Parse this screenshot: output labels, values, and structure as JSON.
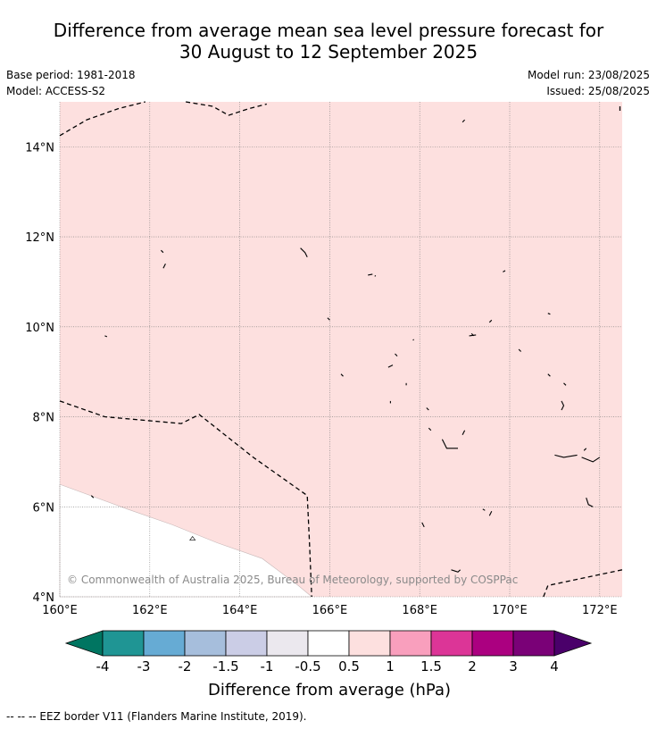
{
  "title": {
    "line1": "Difference from average mean sea level pressure forecast for",
    "line2": "30 August to 12 September 2025"
  },
  "meta": {
    "base_period": "Base period: 1981-2018",
    "model": "Model: ACCESS-S2",
    "model_run": "Model run: 23/08/2025",
    "issued": "Issued: 25/08/2025"
  },
  "map": {
    "lon_range": [
      160,
      172.5
    ],
    "lat_range": [
      4,
      15
    ],
    "lon_ticks": [
      {
        "value": 160,
        "label": "160°E"
      },
      {
        "value": 162,
        "label": "162°E"
      },
      {
        "value": 164,
        "label": "164°E"
      },
      {
        "value": 166,
        "label": "166°E"
      },
      {
        "value": 168,
        "label": "168°E"
      },
      {
        "value": 170,
        "label": "170°E"
      },
      {
        "value": 172,
        "label": "172°E"
      }
    ],
    "lat_ticks": [
      {
        "value": 4,
        "label": "4°N"
      },
      {
        "value": 6,
        "label": "6°N"
      },
      {
        "value": 8,
        "label": "8°N"
      },
      {
        "value": 10,
        "label": "10°N"
      },
      {
        "value": 12,
        "label": "12°N"
      },
      {
        "value": 14,
        "label": "14°N"
      }
    ],
    "field_category": "0.5 to 1",
    "field_color": "#fde0df",
    "neutral_category": "-0.5 to 0.5",
    "neutral_color": "#ffffff",
    "copyright": "© Commonwealth of Australia 2025, Bureau of Meteorology, supported by COSPPac",
    "eez_lines": [
      [
        [
          160,
          14.25
        ],
        [
          160.6,
          14.6
        ],
        [
          161.3,
          14.85
        ],
        [
          161.9,
          15.0
        ]
      ],
      [
        [
          162.8,
          15.0
        ],
        [
          163.4,
          14.9
        ],
        [
          163.75,
          14.7
        ],
        [
          164.2,
          14.85
        ],
        [
          164.6,
          14.95
        ]
      ],
      [
        [
          160,
          8.35
        ],
        [
          161.0,
          8.0
        ],
        [
          162.7,
          7.85
        ],
        [
          163.1,
          8.05
        ],
        [
          164.3,
          7.1
        ],
        [
          165.5,
          6.25
        ],
        [
          165.55,
          5.2
        ],
        [
          165.6,
          4.0
        ]
      ],
      [
        [
          170.75,
          4.0
        ],
        [
          170.85,
          4.25
        ],
        [
          172.5,
          4.6
        ]
      ],
      [
        [
          172.45,
          14.9
        ],
        [
          172.45,
          14.75
        ]
      ]
    ],
    "islands": [
      [
        [
          162.25,
          11.7
        ],
        [
          162.3,
          11.65
        ]
      ],
      [
        [
          162.35,
          11.4
        ],
        [
          162.3,
          11.3
        ]
      ],
      [
        [
          165.35,
          11.75
        ],
        [
          165.45,
          11.65
        ],
        [
          165.5,
          11.55
        ]
      ],
      [
        [
          166.85,
          11.15
        ],
        [
          166.95,
          11.17
        ]
      ],
      [
        [
          169.85,
          11.22
        ],
        [
          169.9,
          11.25
        ]
      ],
      [
        [
          168.95,
          14.55
        ],
        [
          169.0,
          14.6
        ]
      ],
      [
        [
          165.95,
          10.2
        ],
        [
          166.0,
          10.15
        ]
      ],
      [
        [
          161.0,
          9.8
        ],
        [
          161.05,
          9.78
        ]
      ],
      [
        [
          167.45,
          9.4
        ],
        [
          167.5,
          9.35
        ]
      ],
      [
        [
          167.3,
          9.1
        ],
        [
          167.4,
          9.15
        ]
      ],
      [
        [
          166.25,
          8.95
        ],
        [
          166.3,
          8.9
        ]
      ],
      [
        [
          167.7,
          8.75
        ],
        [
          167.7,
          8.7
        ]
      ],
      [
        [
          167.35,
          8.35
        ],
        [
          167.35,
          8.3
        ]
      ],
      [
        [
          168.15,
          8.2
        ],
        [
          168.2,
          8.15
        ]
      ],
      [
        [
          168.95,
          7.6
        ],
        [
          169.0,
          7.7
        ]
      ],
      [
        [
          168.5,
          7.5
        ],
        [
          168.6,
          7.3
        ],
        [
          168.85,
          7.3
        ]
      ],
      [
        [
          168.2,
          7.75
        ],
        [
          168.25,
          7.7
        ]
      ],
      [
        [
          169.15,
          9.85
        ],
        [
          169.2,
          9.8
        ]
      ],
      [
        [
          169.55,
          10.1
        ],
        [
          169.6,
          10.15
        ]
      ],
      [
        [
          169.1,
          9.8
        ],
        [
          169.25,
          9.82
        ]
      ],
      [
        [
          170.2,
          9.5
        ],
        [
          170.25,
          9.45
        ]
      ],
      [
        [
          170.85,
          10.3
        ],
        [
          170.9,
          10.28
        ]
      ],
      [
        [
          170.85,
          8.95
        ],
        [
          170.9,
          8.9
        ]
      ],
      [
        [
          171.2,
          8.75
        ],
        [
          171.25,
          8.7
        ]
      ],
      [
        [
          171.15,
          8.35
        ],
        [
          171.2,
          8.25
        ],
        [
          171.15,
          8.15
        ]
      ],
      [
        [
          171.0,
          7.15
        ],
        [
          171.2,
          7.1
        ],
        [
          171.5,
          7.15
        ]
      ],
      [
        [
          171.6,
          7.1
        ],
        [
          171.85,
          7.0
        ],
        [
          172.0,
          7.1
        ]
      ],
      [
        [
          171.7,
          6.2
        ],
        [
          171.75,
          6.05
        ],
        [
          171.85,
          6.0
        ]
      ],
      [
        [
          169.6,
          5.9
        ],
        [
          169.55,
          5.8
        ]
      ],
      [
        [
          169.4,
          5.95
        ],
        [
          169.45,
          5.92
        ]
      ],
      [
        [
          168.05,
          5.65
        ],
        [
          168.1,
          5.55
        ]
      ],
      [
        [
          168.7,
          4.6
        ],
        [
          168.85,
          4.55
        ],
        [
          168.9,
          4.6
        ]
      ],
      [
        [
          167.0,
          11.12
        ],
        [
          167.02,
          11.14
        ]
      ],
      [
        [
          167.85,
          9.7
        ],
        [
          167.87,
          9.72
        ]
      ],
      [
        [
          160.7,
          6.25
        ],
        [
          160.75,
          6.2
        ]
      ],
      [
        [
          171.65,
          7.25
        ],
        [
          171.7,
          7.3
        ]
      ]
    ],
    "white_region": [
      [
        160,
        6.5
      ],
      [
        161.5,
        5.95
      ],
      [
        162.5,
        5.6
      ],
      [
        163.5,
        5.2
      ],
      [
        164.5,
        4.85
      ],
      [
        165.3,
        4.25
      ],
      [
        165.6,
        4.0
      ],
      [
        160,
        4.0
      ]
    ],
    "small_islands": [
      [
        162.95,
        5.3
      ]
    ]
  },
  "colorbar": {
    "colors": [
      "#007561",
      "#1f9594",
      "#66abd4",
      "#a6bedc",
      "#cbcde6",
      "#ebe8ee",
      "#ffffff",
      "#fde0df",
      "#f99fbd",
      "#dc3597",
      "#ab0080",
      "#7a0177",
      "#4a006a"
    ],
    "labels": [
      "-4",
      "-3",
      "-2",
      "-1.5",
      "-1",
      "-0.5",
      "0.5",
      "1",
      "1.5",
      "2",
      "3",
      "4"
    ],
    "title": "Difference from average (hPa)"
  },
  "footer": {
    "legend_text": "-- -- -- EEZ border V11 (Flanders Marine Institute, 2019)."
  }
}
